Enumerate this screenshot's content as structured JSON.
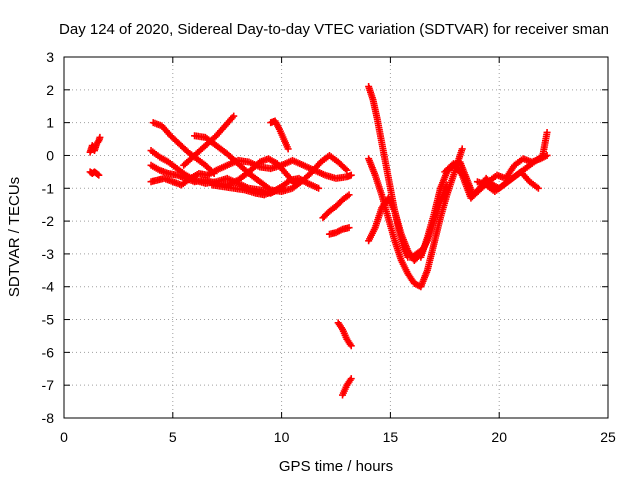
{
  "chart_data": {
    "type": "scatter",
    "title": "Day 124 of 2020, Sidereal Day-to-day VTEC variation (SDTVAR) for receiver sman",
    "xlabel": "GPS time / hours",
    "ylabel": "SDTVAR / TECUs",
    "xlim": [
      0,
      25
    ],
    "ylim": [
      -8,
      3
    ],
    "xticks": [
      0,
      5,
      10,
      15,
      20,
      25
    ],
    "yticks": [
      3,
      2,
      1,
      0,
      -1,
      -2,
      -3,
      -4,
      -5,
      -6,
      -7,
      -8
    ],
    "grid": true,
    "marker": "plus",
    "color": "#ff0000",
    "series": [
      {
        "x": [
          1.2,
          1.3,
          1.4,
          1.5,
          1.6,
          1.65
        ],
        "y": [
          0.1,
          0.3,
          0.15,
          0.35,
          0.45,
          0.55
        ]
      },
      {
        "x": [
          1.2,
          1.3,
          1.4,
          1.5,
          1.6
        ],
        "y": [
          -0.5,
          -0.55,
          -0.5,
          -0.55,
          -0.6
        ]
      },
      {
        "x": [
          4.0,
          4.3,
          4.6,
          5.0,
          5.4,
          5.8,
          6.2,
          6.6,
          7.0,
          7.5,
          8.0,
          8.5,
          9.0,
          9.5,
          10.0,
          10.5,
          11.0,
          11.5,
          12.0,
          12.5,
          13.0,
          13.2
        ],
        "y": [
          -0.8,
          -0.75,
          -0.7,
          -0.8,
          -0.9,
          -0.7,
          -0.55,
          -0.6,
          -0.45,
          -0.3,
          -0.15,
          -0.2,
          -0.35,
          -0.4,
          -0.3,
          -0.15,
          -0.3,
          -0.45,
          -0.6,
          -0.7,
          -0.65,
          -0.6
        ]
      },
      {
        "x": [
          4.0,
          4.4,
          4.8,
          5.2,
          5.6,
          6.0,
          6.5,
          7.0,
          7.5,
          8.0,
          8.5,
          9.0,
          9.4,
          9.8,
          10.2,
          10.6,
          11.0,
          11.4,
          11.8,
          12.2,
          12.6,
          13.0
        ],
        "y": [
          -0.3,
          -0.45,
          -0.55,
          -0.6,
          -0.7,
          -0.8,
          -0.75,
          -0.85,
          -0.9,
          -0.75,
          -0.5,
          -0.2,
          -0.1,
          -0.25,
          -0.55,
          -0.85,
          -0.75,
          -0.5,
          -0.2,
          0.0,
          -0.2,
          -0.45
        ]
      },
      {
        "x": [
          4.0,
          4.4,
          4.8,
          5.2,
          5.6,
          6.0,
          6.5,
          7.0,
          7.5,
          8.0,
          8.5,
          9.0,
          9.5,
          10.0
        ],
        "y": [
          0.15,
          -0.05,
          -0.2,
          -0.4,
          -0.6,
          -0.75,
          -0.85,
          -0.8,
          -0.7,
          -0.85,
          -1.0,
          -1.05,
          -1.15,
          -1.0
        ]
      },
      {
        "x": [
          4.1,
          4.5,
          4.9,
          5.3,
          5.7,
          6.1,
          6.5,
          6.9
        ],
        "y": [
          1.0,
          0.9,
          0.6,
          0.35,
          0.1,
          -0.1,
          -0.3,
          -0.55
        ]
      },
      {
        "x": [
          6.0,
          6.5,
          7.0,
          7.5,
          8.0,
          8.5,
          9.0,
          9.5,
          10.0,
          10.5,
          11.0
        ],
        "y": [
          0.6,
          0.55,
          0.3,
          0.05,
          -0.25,
          -0.55,
          -0.8,
          -1.05,
          -1.1,
          -1.0,
          -0.75
        ]
      },
      {
        "x": [
          5.5,
          6.0,
          6.5,
          7.0,
          7.4,
          7.8
        ],
        "y": [
          -0.3,
          0.0,
          0.3,
          0.6,
          0.9,
          1.2
        ]
      },
      {
        "x": [
          6.8,
          7.3,
          7.8,
          8.3,
          8.8,
          9.2,
          9.6,
          10.0,
          10.4,
          10.8,
          11.2,
          11.7
        ],
        "y": [
          -0.9,
          -0.95,
          -1.0,
          -1.05,
          -1.15,
          -1.2,
          -1.1,
          -0.95,
          -0.75,
          -0.7,
          -0.85,
          -1.0
        ]
      },
      {
        "x": [
          9.5,
          9.7,
          9.9,
          10.1,
          10.3
        ],
        "y": [
          1.0,
          1.05,
          0.8,
          0.5,
          0.2
        ]
      },
      {
        "x": [
          11.9,
          12.2,
          12.5,
          12.8,
          13.1
        ],
        "y": [
          -1.9,
          -1.7,
          -1.55,
          -1.35,
          -1.2
        ]
      },
      {
        "x": [
          12.2,
          12.5,
          12.8,
          13.1
        ],
        "y": [
          -2.4,
          -2.35,
          -2.25,
          -2.2
        ]
      },
      {
        "x": [
          12.6,
          12.8,
          13.0,
          13.2
        ],
        "y": [
          -5.1,
          -5.3,
          -5.6,
          -5.8
        ]
      },
      {
        "x": [
          12.8,
          13.0,
          13.2
        ],
        "y": [
          -7.3,
          -7.0,
          -6.8
        ]
      },
      {
        "x": [
          14.0,
          14.2,
          14.4,
          14.6,
          14.8,
          15.0,
          15.2,
          15.4,
          15.6,
          15.8,
          16.0,
          16.2,
          16.4
        ],
        "y": [
          2.1,
          1.7,
          1.1,
          0.4,
          -0.3,
          -1.0,
          -1.7,
          -2.3,
          -2.8,
          -3.1,
          -3.1,
          -3.0,
          -2.9
        ]
      },
      {
        "x": [
          14.0,
          14.3,
          14.6,
          14.9,
          15.2,
          15.5,
          15.8,
          16.1,
          16.4,
          16.7,
          17.0,
          17.3,
          17.6,
          18.0,
          18.3
        ],
        "y": [
          -0.1,
          -0.6,
          -1.2,
          -1.9,
          -2.6,
          -3.2,
          -3.6,
          -3.9,
          -4.0,
          -3.5,
          -2.7,
          -1.9,
          -1.2,
          -0.4,
          0.2
        ]
      },
      {
        "x": [
          14.0,
          14.3,
          14.6,
          14.9,
          15.2,
          15.5,
          15.8,
          16.1,
          16.4,
          16.7,
          17.0,
          17.3,
          17.6
        ],
        "y": [
          -2.6,
          -2.2,
          -1.6,
          -1.3,
          -1.7,
          -2.4,
          -2.9,
          -3.2,
          -3.0,
          -2.6,
          -2.0,
          -1.4,
          -0.9
        ]
      },
      {
        "x": [
          16.4,
          16.7,
          17.0,
          17.3,
          17.6,
          17.9,
          18.2,
          18.5,
          18.8,
          19.1,
          19.4,
          19.7,
          20.0,
          20.4,
          20.8,
          21.2,
          21.6,
          22.0,
          22.2
        ],
        "y": [
          -3.1,
          -2.5,
          -1.8,
          -1.0,
          -0.5,
          -0.3,
          -0.2,
          -0.7,
          -1.2,
          -1.0,
          -0.7,
          -0.9,
          -1.0,
          -0.8,
          -0.6,
          -0.4,
          -0.2,
          0.0,
          0.7
        ]
      },
      {
        "x": [
          17.5,
          17.9,
          18.3,
          18.7,
          19.1,
          19.5,
          19.9,
          20.3,
          20.7,
          21.1,
          21.5,
          21.9,
          22.2
        ],
        "y": [
          -0.5,
          -0.25,
          -0.6,
          -1.3,
          -1.05,
          -0.8,
          -0.6,
          -0.7,
          -0.3,
          -0.1,
          -0.2,
          -0.1,
          0.0
        ]
      },
      {
        "x": [
          19.0,
          19.4,
          19.8,
          20.2,
          20.6,
          21.0,
          21.4,
          21.8
        ],
        "y": [
          -0.8,
          -0.9,
          -1.1,
          -0.9,
          -0.7,
          -0.5,
          -0.8,
          -1.0
        ]
      }
    ]
  }
}
